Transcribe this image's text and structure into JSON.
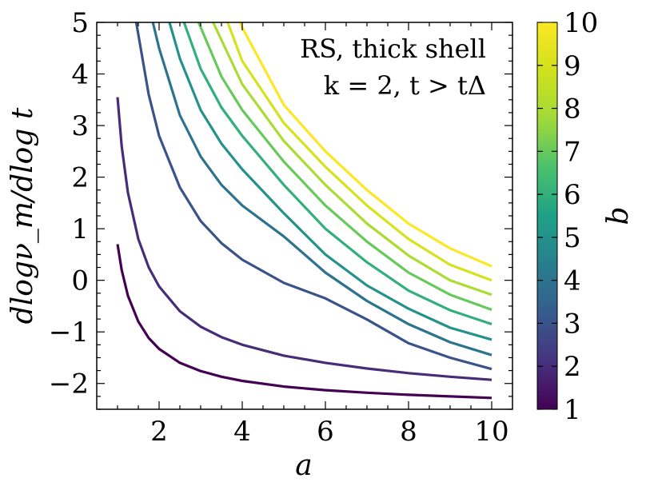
{
  "chart_data": {
    "type": "line",
    "title": "",
    "annotation_line1": "RS, thick shell",
    "annotation_line2": "k = 2, t > tΔ",
    "xlabel": "a",
    "ylabel": "dlogν_m/dlog t",
    "xlim": [
      0.5,
      10.5
    ],
    "ylim": [
      -2.5,
      5
    ],
    "x_ticks": [
      2,
      4,
      6,
      8,
      10
    ],
    "y_ticks": [
      -2,
      -1,
      0,
      1,
      2,
      3,
      4,
      5
    ],
    "colorbar": {
      "label": "b",
      "min": 1,
      "max": 10,
      "ticks": [
        1,
        2,
        3,
        4,
        5,
        6,
        7,
        8,
        9,
        10
      ],
      "colormap": "viridis"
    },
    "series": [
      {
        "name": "b=1",
        "b": 1,
        "x": [
          1.0,
          1.1,
          1.25,
          1.5,
          1.75,
          2,
          2.5,
          3,
          3.5,
          4,
          5,
          6,
          7,
          8,
          9,
          10
        ],
        "y": [
          0.7,
          0.2,
          -0.3,
          -0.8,
          -1.12,
          -1.33,
          -1.6,
          -1.76,
          -1.87,
          -1.95,
          -2.06,
          -2.13,
          -2.18,
          -2.22,
          -2.25,
          -2.28
        ]
      },
      {
        "name": "b=2",
        "b": 2,
        "x": [
          1.0,
          1.1,
          1.25,
          1.5,
          1.75,
          2,
          2.5,
          3,
          3.5,
          4,
          5,
          6,
          7,
          8,
          9,
          10
        ],
        "y": [
          3.55,
          2.6,
          1.7,
          0.8,
          0.25,
          -0.12,
          -0.6,
          -0.9,
          -1.1,
          -1.25,
          -1.46,
          -1.6,
          -1.71,
          -1.8,
          -1.87,
          -1.93
        ]
      },
      {
        "name": "b=3",
        "b": 3,
        "x": [
          1.45,
          1.75,
          2,
          2.5,
          3,
          3.5,
          4,
          5,
          6,
          7,
          8,
          9,
          10
        ],
        "y": [
          5.0,
          3.6,
          2.8,
          1.8,
          1.15,
          0.72,
          0.4,
          -0.05,
          -0.35,
          -0.76,
          -1.22,
          -1.5,
          -1.72
        ]
      },
      {
        "name": "b=4",
        "b": 4,
        "x": [
          1.85,
          2,
          2.5,
          3,
          3.5,
          4,
          5,
          6,
          7,
          8,
          9,
          10
        ],
        "y": [
          5.0,
          4.5,
          3.2,
          2.4,
          1.85,
          1.45,
          0.85,
          0.15,
          -0.4,
          -0.85,
          -1.2,
          -1.45
        ]
      },
      {
        "name": "b=5",
        "b": 5,
        "x": [
          2.25,
          2.5,
          3,
          3.5,
          4,
          5,
          6,
          7,
          8,
          9,
          10
        ],
        "y": [
          5.0,
          4.3,
          3.3,
          2.65,
          2.15,
          1.3,
          0.5,
          -0.1,
          -0.55,
          -0.92,
          -1.15
        ]
      },
      {
        "name": "b=6",
        "b": 6,
        "x": [
          2.6,
          3,
          3.5,
          4,
          5,
          6,
          7,
          8,
          9,
          10
        ],
        "y": [
          5.0,
          4.1,
          3.35,
          2.8,
          1.85,
          1.0,
          0.35,
          -0.2,
          -0.58,
          -0.85
        ]
      },
      {
        "name": "b=7",
        "b": 7,
        "x": [
          2.95,
          3.5,
          4,
          5,
          6,
          7,
          8,
          9,
          10
        ],
        "y": [
          5.0,
          3.95,
          3.3,
          2.3,
          1.45,
          0.75,
          0.15,
          -0.28,
          -0.57
        ]
      },
      {
        "name": "b=8",
        "b": 8,
        "x": [
          3.3,
          4,
          5,
          6,
          7,
          8,
          9,
          10
        ],
        "y": [
          5.0,
          3.8,
          2.7,
          1.85,
          1.1,
          0.48,
          0.0,
          -0.28
        ]
      },
      {
        "name": "b=9",
        "b": 9,
        "x": [
          3.65,
          4,
          5,
          6,
          7,
          8,
          9,
          10
        ],
        "y": [
          5.0,
          4.25,
          3.05,
          2.2,
          1.45,
          0.8,
          0.3,
          0.0
        ]
      },
      {
        "name": "b=10",
        "b": 10,
        "x": [
          3.95,
          4,
          5,
          6,
          7,
          8,
          9,
          10
        ],
        "y": [
          5.0,
          4.9,
          3.4,
          2.5,
          1.75,
          1.1,
          0.62,
          0.27
        ]
      }
    ]
  }
}
